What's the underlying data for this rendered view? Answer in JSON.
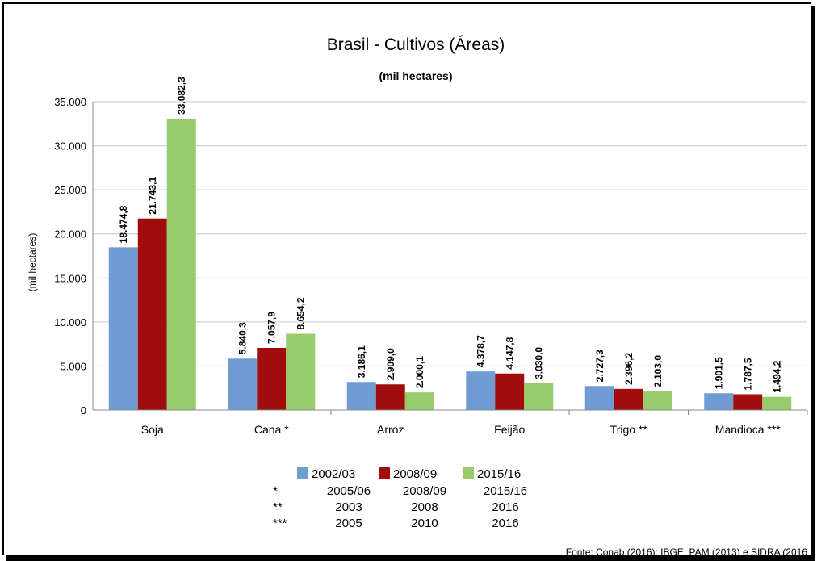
{
  "chart_data": {
    "type": "bar",
    "title": "Brasil - Cultivos (Áreas)",
    "subtitle": "(mil hectares)",
    "ylabel": "(mil hectares)",
    "xlabel": "",
    "ylim": [
      0,
      35000
    ],
    "yticks": [
      0,
      5000,
      10000,
      15000,
      20000,
      25000,
      30000,
      35000
    ],
    "ytick_labels": [
      "0",
      "5.000",
      "10.000",
      "15.000",
      "20.000",
      "25.000",
      "30.000",
      "35.000"
    ],
    "grid": true,
    "legend_position": "bottom",
    "categories": [
      "Soja",
      "Cana *",
      "Arroz",
      "Feijão",
      "Trigo **",
      "Mandioca ***"
    ],
    "series": [
      {
        "name": "2002/03",
        "color": "#6f9dd3",
        "values": [
          18474.8,
          5840.3,
          3186.1,
          4378.7,
          2727.3,
          1901.5
        ],
        "labels": [
          "18.474,8",
          "5.840,3",
          "3.186,1",
          "4.378,7",
          "2.727,3",
          "1.901,5"
        ]
      },
      {
        "name": "2008/09",
        "color": "#a10d0d",
        "values": [
          21743.1,
          7057.9,
          2909.0,
          4147.8,
          2396.2,
          1787.5
        ],
        "labels": [
          "21.743,1",
          "7.057,9",
          "2.909,0",
          "4.147,8",
          "2.396,2",
          "1.787,5"
        ]
      },
      {
        "name": "2015/16",
        "color": "#98cb6a",
        "values": [
          33082.3,
          8654.2,
          2000.1,
          3030.0,
          2103.0,
          1494.2
        ],
        "labels": [
          "33.082,3",
          "8.654,2",
          "2.000,1",
          "3.030,0",
          "2.103,0",
          "1.494,2"
        ]
      }
    ],
    "notes": [
      {
        "mark": "*",
        "values": [
          "2005/06",
          "2008/09",
          "2015/16"
        ]
      },
      {
        "mark": "**",
        "values": [
          "2003",
          "2008",
          "2016"
        ]
      },
      {
        "mark": "***",
        "values": [
          "2005",
          "2010",
          "2016"
        ]
      }
    ],
    "source": "Fonte: Conab (2016); IBGE: PAM (2013) e SIDRA (2016"
  }
}
